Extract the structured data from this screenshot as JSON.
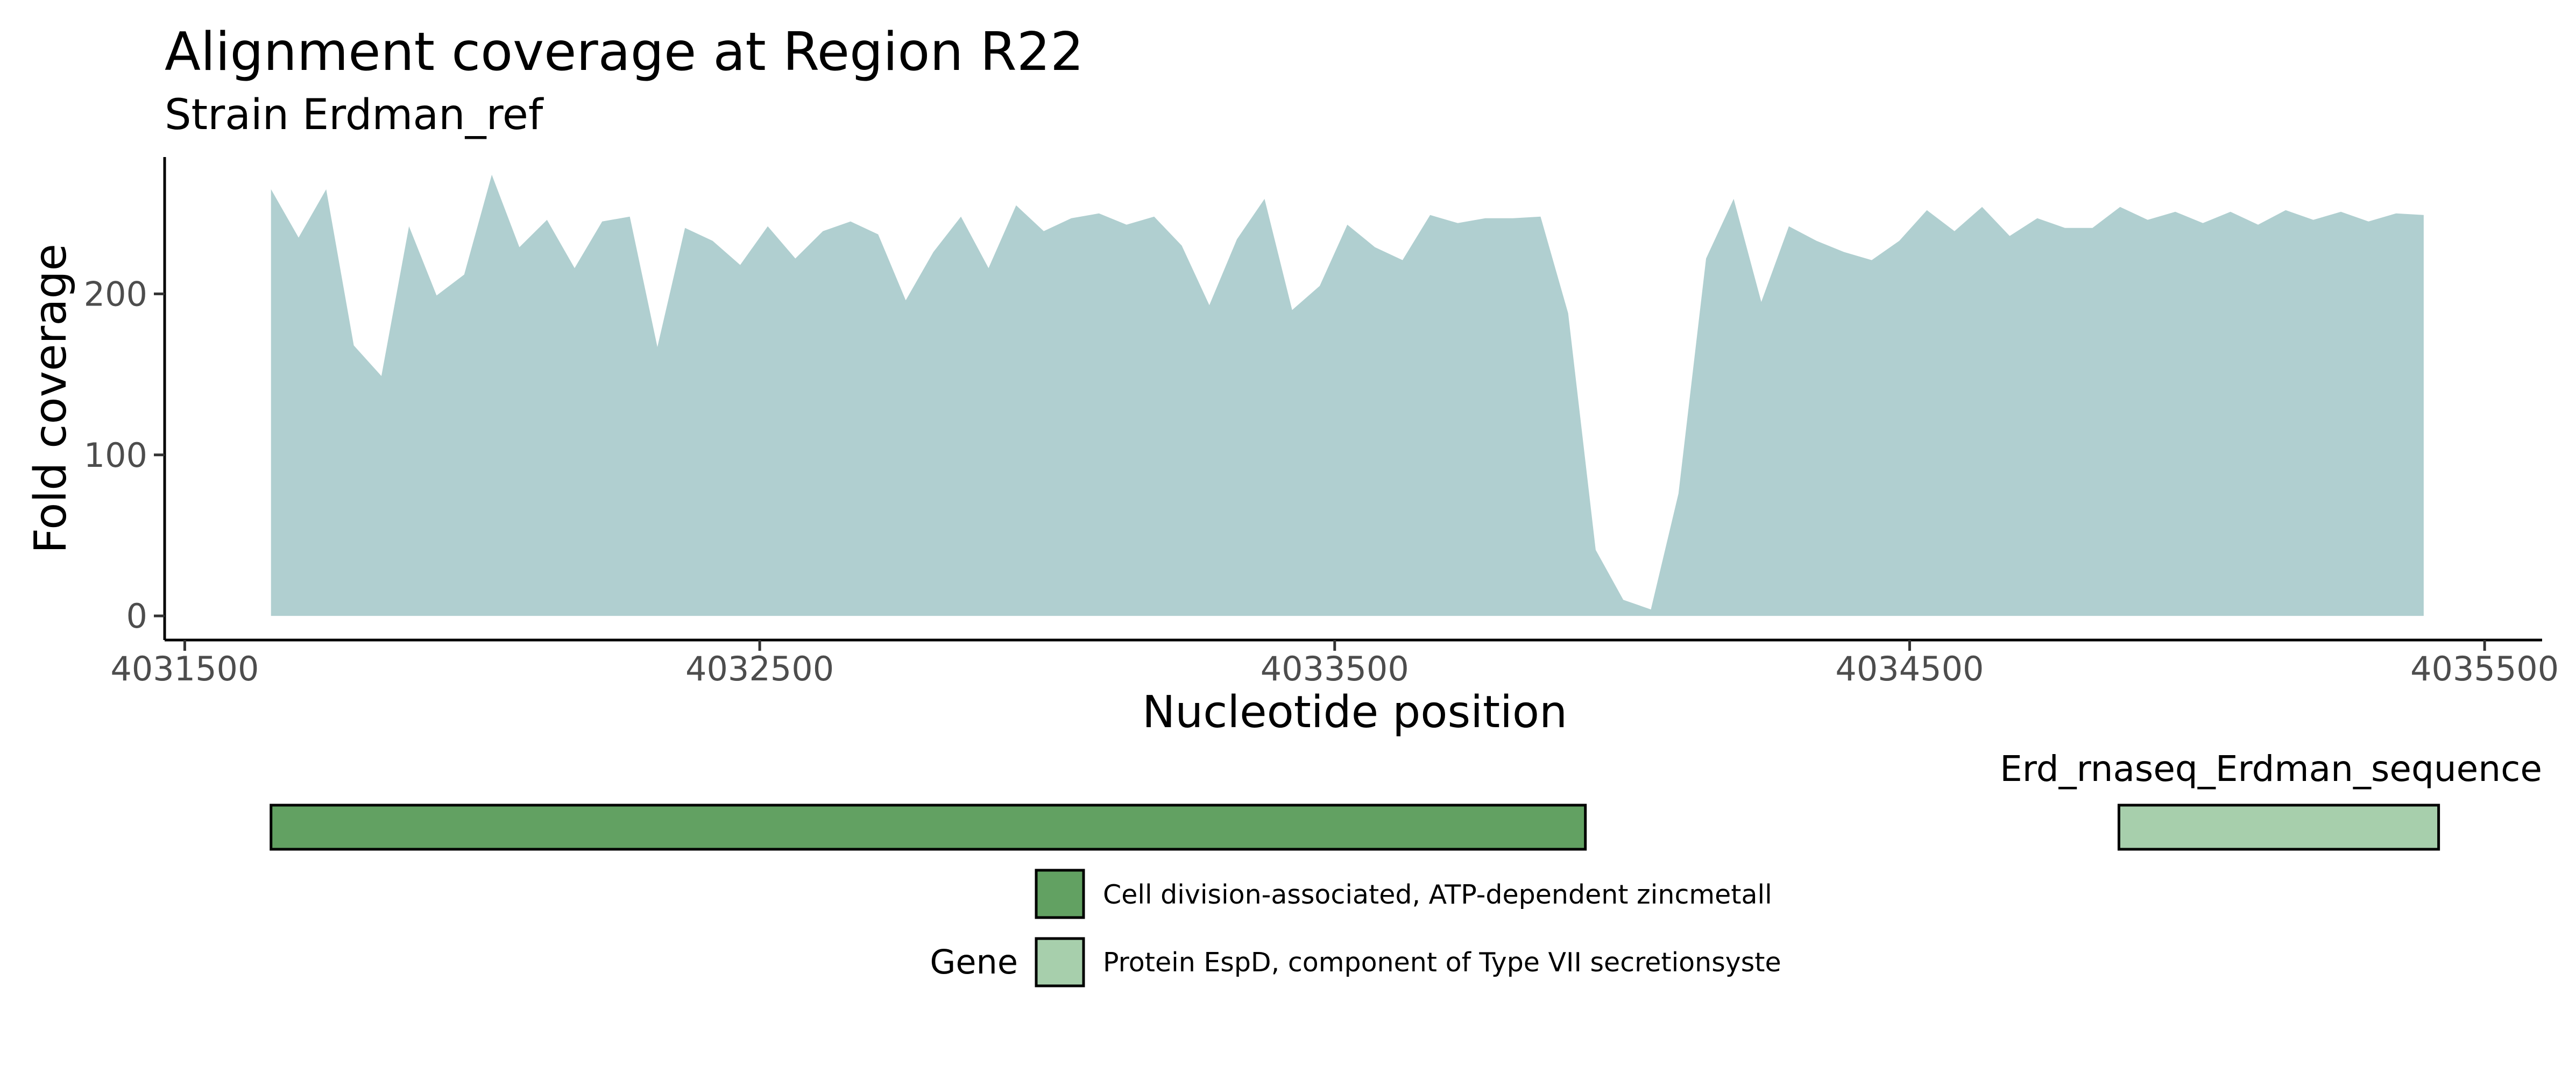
{
  "chart_data": {
    "type": "area",
    "title": "Alignment coverage at Region R22",
    "subtitle": "Strain Erdman_ref",
    "xlabel": "Nucleotide position",
    "ylabel": "Fold coverage",
    "xlim": [
      4031465,
      4035600
    ],
    "ylim": [
      -15,
      285
    ],
    "x_ticks": [
      4031500,
      4032500,
      4033500,
      4034500,
      4035500
    ],
    "y_ticks": [
      0,
      100,
      200
    ],
    "grid": false,
    "colors": {
      "coverage_fill": "#b0cfd0",
      "gene_1": "#62a162",
      "gene_2": "#a7cfac",
      "axis": "#000000"
    },
    "series": [
      {
        "x": [
          4031650,
          4031698,
          4031746,
          4031794,
          4031842,
          4031890,
          4031938,
          4031986,
          4032034,
          4032082,
          4032130,
          4032178,
          4032226,
          4032274,
          4032322,
          4032370,
          4032418,
          4032466,
          4032514,
          4032562,
          4032610,
          4032658,
          4032706,
          4032754,
          4032802,
          4032850,
          4032898,
          4032946,
          4032994,
          4033042,
          4033090,
          4033138,
          4033186,
          4033234,
          4033282,
          4033330,
          4033378,
          4033426,
          4033474,
          4033522,
          4033570,
          4033618,
          4033666,
          4033714,
          4033762,
          4033810,
          4033858,
          4033906,
          4033954,
          4034002,
          4034050,
          4034098,
          4034146,
          4034194,
          4034242,
          4034290,
          4034338,
          4034386,
          4034434,
          4034482,
          4034530,
          4034578,
          4034626,
          4034674,
          4034722,
          4034770,
          4034818,
          4034866,
          4034914,
          4034962,
          4035010,
          4035058,
          4035106,
          4035154,
          4035202,
          4035250,
          4035298,
          4035346,
          4035394
        ],
        "values": [
          265,
          235,
          265,
          168,
          149,
          242,
          199,
          212,
          274,
          229,
          246,
          216,
          245,
          248,
          167,
          241,
          233,
          218,
          242,
          222,
          239,
          245,
          237,
          196,
          226,
          248,
          216,
          255,
          239,
          247,
          250,
          243,
          248,
          230,
          193,
          234,
          259,
          190,
          205,
          243,
          229,
          221,
          249,
          244,
          247,
          247,
          248,
          188,
          41,
          10,
          4,
          76,
          222,
          259,
          195,
          242,
          233,
          226,
          221,
          233,
          252,
          239,
          254,
          236,
          247,
          241,
          241,
          254,
          246,
          251,
          244,
          251,
          243,
          252,
          246,
          251,
          245,
          250,
          249
        ]
      }
    ],
    "gene_track": {
      "label": "Erd_rnaseq_Erdman_sequence",
      "genes": [
        {
          "start": 4031650,
          "end": 4033936,
          "color": "#62a162"
        },
        {
          "start": 4034864,
          "end": 4035420,
          "color": "#a7cfac"
        }
      ]
    },
    "legend": {
      "title": "Gene",
      "position": "bottom",
      "entries": [
        {
          "label": "Cell division-associated, ATP-dependent zincmetall",
          "color": "#62a162"
        },
        {
          "label": "Protein EspD, component of Type VII secretionsyste",
          "color": "#a7cfac"
        }
      ]
    }
  }
}
